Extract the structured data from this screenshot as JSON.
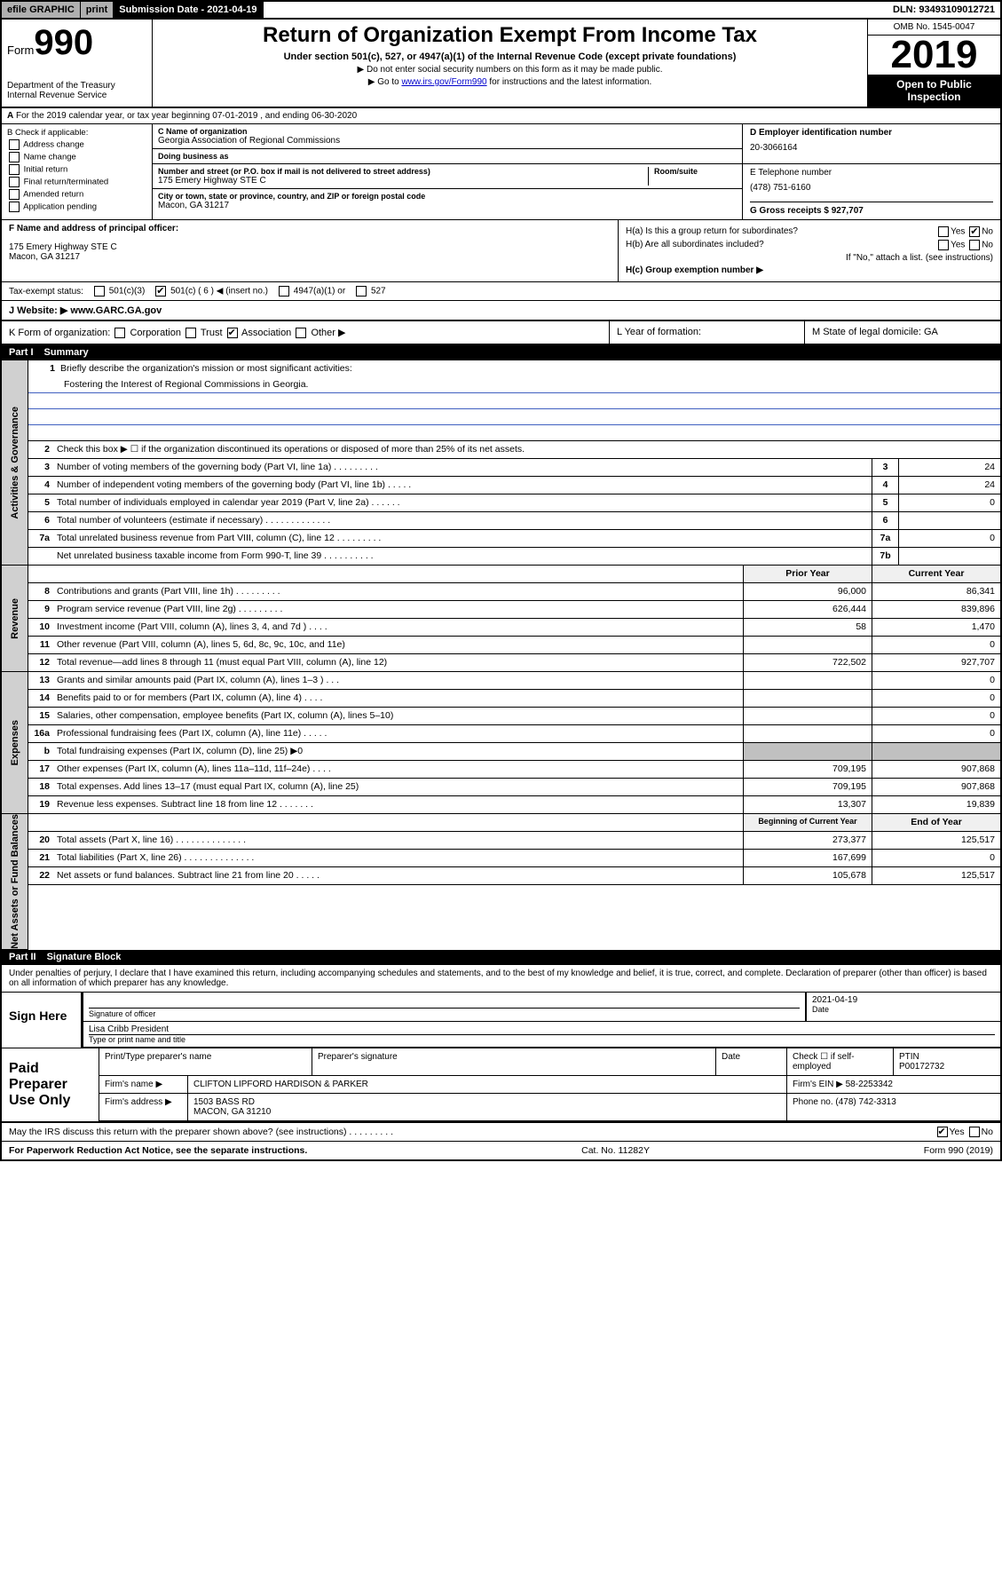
{
  "topbar": {
    "efile": "efile GRAPHIC",
    "print": "print",
    "subdate_lbl": "Submission Date - 2021-04-19",
    "dln": "DLN: 93493109012721"
  },
  "header": {
    "form_lbl": "Form",
    "form_num": "990",
    "dept": "Department of the Treasury\nInternal Revenue Service",
    "title": "Return of Organization Exempt From Income Tax",
    "subtitle": "Under section 501(c), 527, or 4947(a)(1) of the Internal Revenue Code (except private foundations)",
    "note1": "Do not enter social security numbers on this form as it may be made public.",
    "note2_pre": "Go to ",
    "note2_link": "www.irs.gov/Form990",
    "note2_post": " for instructions and the latest information.",
    "omb": "OMB No. 1545-0047",
    "year": "2019",
    "open": "Open to Public Inspection"
  },
  "row_a": "For the 2019 calendar year, or tax year beginning 07-01-2019    , and ending 06-30-2020",
  "col_b": {
    "hdr": "B Check if applicable:",
    "items": [
      "Address change",
      "Name change",
      "Initial return",
      "Final return/terminated",
      "Amended return",
      "Application pending"
    ]
  },
  "col_c": {
    "name_lbl": "C Name of organization",
    "name": "Georgia Association of Regional Commissions",
    "dba_lbl": "Doing business as",
    "addr_lbl": "Number and street (or P.O. box if mail is not delivered to street address)",
    "room_lbl": "Room/suite",
    "addr": "175 Emery Highway STE C",
    "city_lbl": "City or town, state or province, country, and ZIP or foreign postal code",
    "city": "Macon, GA  31217"
  },
  "col_d": {
    "ein_lbl": "D Employer identification number",
    "ein": "20-3066164",
    "tel_lbl": "E Telephone number",
    "tel": "(478) 751-6160",
    "gross_lbl": "G Gross receipts $ 927,707"
  },
  "col_f": {
    "lbl": "F Name and address of principal officer:",
    "addr1": "175 Emery Highway STE C",
    "addr2": "Macon, GA  31217"
  },
  "col_h": {
    "a_lbl": "H(a)  Is this a group return for subordinates?",
    "b_lbl": "H(b)  Are all subordinates included?",
    "b_note": "If \"No,\" attach a list. (see instructions)",
    "c_lbl": "H(c)  Group exemption number ▶",
    "yes": "Yes",
    "no": "No"
  },
  "tax": {
    "lbl": "Tax-exempt status:",
    "c3": "501(c)(3)",
    "c": "501(c) ( 6 ) ◀ (insert no.)",
    "a1": "4947(a)(1) or",
    "s527": "527"
  },
  "web": {
    "lbl": "J   Website: ▶",
    "val": "www.GARC.GA.gov"
  },
  "k": {
    "lbl": "K Form of organization:",
    "corp": "Corporation",
    "trust": "Trust",
    "assoc": "Association",
    "other": "Other ▶",
    "l_lbl": "L Year of formation:",
    "m_lbl": "M State of legal domicile: GA"
  },
  "part1": {
    "num": "Part I",
    "title": "Summary"
  },
  "mission": {
    "lbl": "Briefly describe the organization's mission or most significant activities:",
    "txt": "Fostering the Interest of Regional Commissions in Georgia."
  },
  "lines_gov": [
    {
      "n": "2",
      "t": "Check this box ▶ ☐  if the organization discontinued its operations or disposed of more than 25% of its net assets."
    },
    {
      "n": "3",
      "t": "Number of voting members of the governing body (Part VI, line 1a)   .    .    .    .    .    .    .    .    .",
      "nb": "3",
      "v": "24"
    },
    {
      "n": "4",
      "t": "Number of independent voting members of the governing body (Part VI, line 1b)   .    .    .    .    .",
      "nb": "4",
      "v": "24"
    },
    {
      "n": "5",
      "t": "Total number of individuals employed in calendar year 2019 (Part V, line 2a)   .    .    .    .    .    .",
      "nb": "5",
      "v": "0"
    },
    {
      "n": "6",
      "t": "Total number of volunteers (estimate if necessary)   .    .    .    .    .    .    .    .    .    .    .    .    .",
      "nb": "6",
      "v": ""
    },
    {
      "n": "7a",
      "t": "Total unrelated business revenue from Part VIII, column (C), line 12   .    .    .    .    .    .    .    .    .",
      "nb": "7a",
      "v": "0"
    },
    {
      "n": "",
      "t": "Net unrelated business taxable income from Form 990-T, line 39   .    .    .    .    .    .    .    .    .    .",
      "nb": "7b",
      "v": ""
    }
  ],
  "rev_hdr": {
    "c1": "Prior Year",
    "c2": "Current Year"
  },
  "lines_rev": [
    {
      "n": "8",
      "t": "Contributions and grants (Part VIII, line 1h)   .    .    .    .    .    .    .    .    .",
      "c1": "96,000",
      "c2": "86,341"
    },
    {
      "n": "9",
      "t": "Program service revenue (Part VIII, line 2g)   .    .    .    .    .    .    .    .    .",
      "c1": "626,444",
      "c2": "839,896"
    },
    {
      "n": "10",
      "t": "Investment income (Part VIII, column (A), lines 3, 4, and 7d )   .    .    .    .",
      "c1": "58",
      "c2": "1,470"
    },
    {
      "n": "11",
      "t": "Other revenue (Part VIII, column (A), lines 5, 6d, 8c, 9c, 10c, and 11e)",
      "c1": "",
      "c2": "0"
    },
    {
      "n": "12",
      "t": "Total revenue—add lines 8 through 11 (must equal Part VIII, column (A), line 12)",
      "c1": "722,502",
      "c2": "927,707"
    }
  ],
  "lines_exp": [
    {
      "n": "13",
      "t": "Grants and similar amounts paid (Part IX, column (A), lines 1–3 )   .    .    .",
      "c1": "",
      "c2": "0"
    },
    {
      "n": "14",
      "t": "Benefits paid to or for members (Part IX, column (A), line 4)   .    .    .    .",
      "c1": "",
      "c2": "0"
    },
    {
      "n": "15",
      "t": "Salaries, other compensation, employee benefits (Part IX, column (A), lines 5–10)",
      "c1": "",
      "c2": "0"
    },
    {
      "n": "16a",
      "t": "Professional fundraising fees (Part IX, column (A), line 11e)   .    .    .    .    .",
      "c1": "",
      "c2": "0"
    },
    {
      "n": "b",
      "t": "Total fundraising expenses (Part IX, column (D), line 25) ▶0",
      "c1g": true,
      "c2g": true
    },
    {
      "n": "17",
      "t": "Other expenses (Part IX, column (A), lines 11a–11d, 11f–24e)   .    .    .    .",
      "c1": "709,195",
      "c2": "907,868"
    },
    {
      "n": "18",
      "t": "Total expenses. Add lines 13–17 (must equal Part IX, column (A), line 25)",
      "c1": "709,195",
      "c2": "907,868"
    },
    {
      "n": "19",
      "t": "Revenue less expenses. Subtract line 18 from line 12   .    .    .    .    .    .    .",
      "c1": "13,307",
      "c2": "19,839"
    }
  ],
  "net_hdr": {
    "c1": "Beginning of Current Year",
    "c2": "End of Year"
  },
  "lines_net": [
    {
      "n": "20",
      "t": "Total assets (Part X, line 16)   .    .    .    .    .    .    .    .    .    .    .    .    .    .",
      "c1": "273,377",
      "c2": "125,517"
    },
    {
      "n": "21",
      "t": "Total liabilities (Part X, line 26)   .    .    .    .    .    .    .    .    .    .    .    .    .    .",
      "c1": "167,699",
      "c2": "0"
    },
    {
      "n": "22",
      "t": "Net assets or fund balances. Subtract line 21 from line 20   .    .    .    .    .",
      "c1": "105,678",
      "c2": "125,517"
    }
  ],
  "part2": {
    "num": "Part II",
    "title": "Signature Block"
  },
  "declare": "Under penalties of perjury, I declare that I have examined this return, including accompanying schedules and statements, and to the best of my knowledge and belief, it is true, correct, and complete. Declaration of preparer (other than officer) is based on all information of which preparer has any knowledge.",
  "sign": {
    "lbl": "Sign Here",
    "sig_lbl": "Signature of officer",
    "date": "2021-04-19",
    "date_lbl": "Date",
    "name": "Lisa Cribb  President",
    "name_lbl": "Type or print name and title"
  },
  "prep": {
    "lbl": "Paid Preparer Use Only",
    "pn_lbl": "Print/Type preparer's name",
    "ps_lbl": "Preparer's signature",
    "d_lbl": "Date",
    "se_lbl": "Check ☐ if self-employed",
    "ptin_lbl": "PTIN",
    "ptin": "P00172732",
    "firm_lbl": "Firm's name    ▶",
    "firm": "CLIFTON LIPFORD HARDISON & PARKER",
    "ein_lbl": "Firm's EIN ▶",
    "ein": "58-2253342",
    "addr_lbl": "Firm's address ▶",
    "addr1": "1503 BASS RD",
    "addr2": "MACON, GA  31210",
    "ph_lbl": "Phone no.",
    "ph": "(478) 742-3313"
  },
  "discuss": {
    "q": "May the IRS discuss this return with the preparer shown above? (see instructions)   .    .    .    .    .    .    .    .    .",
    "yes": "Yes",
    "no": "No"
  },
  "footer": {
    "l": "For Paperwork Reduction Act Notice, see the separate instructions.",
    "m": "Cat. No. 11282Y",
    "r": "Form 990 (2019)"
  },
  "vtabs": {
    "gov": "Activities & Governance",
    "rev": "Revenue",
    "exp": "Expenses",
    "net": "Net Assets or Fund Balances"
  }
}
